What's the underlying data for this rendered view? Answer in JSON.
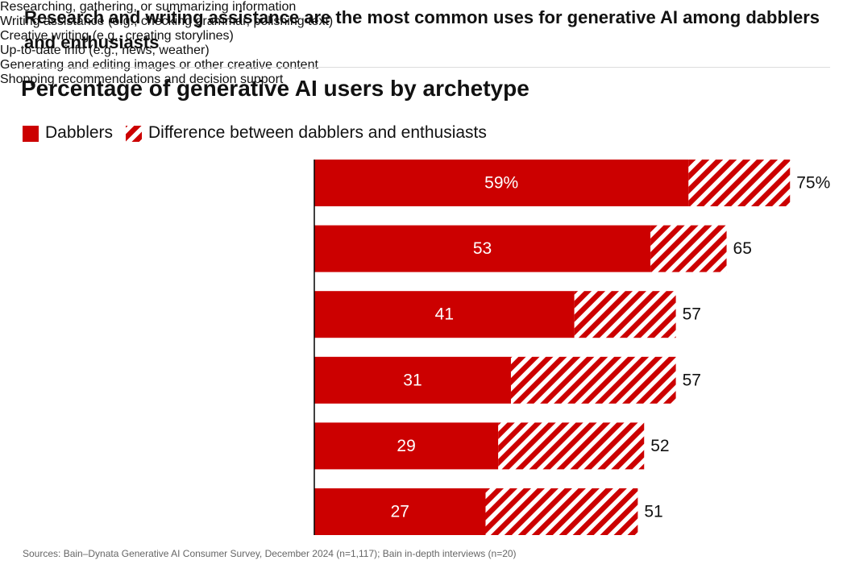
{
  "header": {
    "title": "Research and writing assistance are the most common uses for generative AI among dabblers and enthusiasts"
  },
  "chart_data": {
    "type": "bar",
    "orientation": "horizontal",
    "stacked": true,
    "title": "Percentage of generative AI users by archetype",
    "categories": [
      "Researching, gathering,\nor summarizing information",
      "Writing assistance (e.g., checking\ngrammar, polishing text)",
      "Creative writing\n(e.g., creating storylines)",
      "Up-to-date info\n(e.g., news, weather)",
      "Generating and editing images\nor other creative content",
      "Shopping recommendations\nand decision support"
    ],
    "series": [
      {
        "name": "Dabblers",
        "color": "#cc0000",
        "values": [
          59,
          53,
          41,
          31,
          29,
          27
        ],
        "value_labels": [
          "59%",
          "53",
          "41",
          "31",
          "29",
          "27"
        ]
      },
      {
        "name": "Difference between dabblers and enthusiasts",
        "color": "#cc0000",
        "pattern": "hatch",
        "values": [
          16,
          12,
          16,
          26,
          23,
          24
        ]
      }
    ],
    "totals": [
      75,
      65,
      57,
      57,
      52,
      51
    ],
    "total_labels": [
      "75%",
      "65",
      "57",
      "57",
      "52",
      "51"
    ],
    "source": "Sources: Bain–Dynata Generative AI Consumer Survey, December 2024 (n=1,117); Bain in-depth interviews (n=20)"
  }
}
